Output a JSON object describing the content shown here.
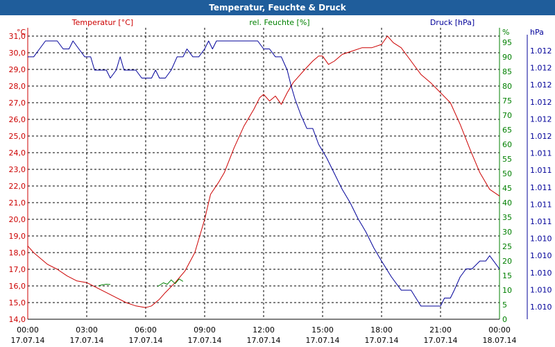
{
  "window": {
    "title": "Temperatur, Feuchte & Druck"
  },
  "colors": {
    "temperature": "#cc0000",
    "humidity": "#008000",
    "pressure": "#000099",
    "grid": "#000000",
    "titlebar": "#1f5d9b"
  },
  "chart_data": {
    "type": "line",
    "title": "Temperatur, Feuchte & Druck",
    "x_range_hours": [
      0,
      24
    ],
    "x_ticks": [
      {
        "h": 0,
        "time": "00:00",
        "date": "17.07.14"
      },
      {
        "h": 3,
        "time": "03:00",
        "date": "17.07.14"
      },
      {
        "h": 6,
        "time": "06:00",
        "date": "17.07.14"
      },
      {
        "h": 9,
        "time": "09:00",
        "date": "17.07.14"
      },
      {
        "h": 12,
        "time": "12:00",
        "date": "17.07.14"
      },
      {
        "h": 15,
        "time": "15:00",
        "date": "17.07.14"
      },
      {
        "h": 18,
        "time": "18:00",
        "date": "17.07.14"
      },
      {
        "h": 21,
        "time": "21:00",
        "date": "17.07.14"
      },
      {
        "h": 24,
        "time": "00:00",
        "date": "18.07.14"
      }
    ],
    "axes": {
      "temperature": {
        "legend": "Temperatur [°C]",
        "unit": "°C",
        "range": [
          14.0,
          31.5
        ],
        "ticks": [
          "31,0",
          "30,0",
          "29,0",
          "28,0",
          "27,0",
          "26,0",
          "25,0",
          "24,0",
          "23,0",
          "22,0",
          "21,0",
          "20,0",
          "19,0",
          "18,0",
          "17,0",
          "16,0",
          "15,0",
          "14,0"
        ]
      },
      "humidity": {
        "legend": "rel. Feuchte [%]",
        "unit": "%",
        "range": [
          0,
          100
        ],
        "ticks": [
          "95",
          "90",
          "85",
          "80",
          "75",
          "70",
          "65",
          "60",
          "55",
          "50",
          "45",
          "40",
          "35",
          "30",
          "25",
          "20",
          "15",
          "10",
          "5",
          "0"
        ]
      },
      "pressure": {
        "legend": "Druck [hPa]",
        "unit": "hPa",
        "ticks": [
          "1.012",
          "1.012",
          "1.012",
          "1.012",
          "1.012",
          "1.012",
          "1.011",
          "1.011",
          "1.011",
          "1.011",
          "1.011",
          "1.010",
          "1.010",
          "1.010",
          "1.010",
          "1.010"
        ]
      }
    },
    "series": [
      {
        "name": "Temperatur",
        "axis": "temperature",
        "points": [
          [
            0.0,
            18.4
          ],
          [
            0.3,
            18.0
          ],
          [
            0.7,
            17.6
          ],
          [
            1.0,
            17.3
          ],
          [
            1.5,
            17.0
          ],
          [
            2.0,
            16.6
          ],
          [
            2.5,
            16.3
          ],
          [
            3.0,
            16.2
          ],
          [
            3.5,
            15.9
          ],
          [
            4.0,
            15.6
          ],
          [
            4.5,
            15.3
          ],
          [
            5.0,
            15.0
          ],
          [
            5.5,
            14.8
          ],
          [
            6.0,
            14.7
          ],
          [
            6.3,
            14.8
          ],
          [
            6.7,
            15.2
          ],
          [
            7.0,
            15.6
          ],
          [
            7.5,
            16.2
          ],
          [
            8.0,
            16.9
          ],
          [
            8.5,
            18.0
          ],
          [
            9.0,
            20.0
          ],
          [
            9.3,
            21.5
          ],
          [
            9.7,
            22.2
          ],
          [
            10.0,
            22.8
          ],
          [
            10.5,
            24.3
          ],
          [
            11.0,
            25.6
          ],
          [
            11.5,
            26.6
          ],
          [
            11.8,
            27.3
          ],
          [
            12.0,
            27.5
          ],
          [
            12.3,
            27.1
          ],
          [
            12.6,
            27.4
          ],
          [
            12.9,
            26.9
          ],
          [
            13.2,
            27.6
          ],
          [
            13.5,
            28.2
          ],
          [
            13.8,
            28.6
          ],
          [
            14.1,
            29.0
          ],
          [
            14.5,
            29.5
          ],
          [
            14.8,
            29.8
          ],
          [
            15.0,
            29.8
          ],
          [
            15.3,
            29.3
          ],
          [
            15.6,
            29.5
          ],
          [
            16.0,
            29.9
          ],
          [
            16.5,
            30.1
          ],
          [
            17.0,
            30.3
          ],
          [
            17.5,
            30.3
          ],
          [
            18.0,
            30.5
          ],
          [
            18.3,
            31.0
          ],
          [
            18.6,
            30.6
          ],
          [
            19.0,
            30.3
          ],
          [
            19.5,
            29.5
          ],
          [
            20.0,
            28.7
          ],
          [
            20.5,
            28.2
          ],
          [
            21.0,
            27.6
          ],
          [
            21.5,
            27.0
          ],
          [
            22.0,
            25.7
          ],
          [
            22.5,
            24.2
          ],
          [
            23.0,
            22.8
          ],
          [
            23.5,
            21.8
          ],
          [
            24.0,
            21.4
          ]
        ]
      },
      {
        "name": "rel. Feuchte",
        "axis": "humidity",
        "points": [
          [
            3.6,
            11.5
          ],
          [
            3.8,
            11.8
          ],
          [
            4.0,
            12.0
          ],
          [
            4.2,
            11.9
          ]
        ]
      },
      {
        "name": "rel. Feuchte",
        "axis": "humidity",
        "points": [
          [
            6.6,
            11.2
          ],
          [
            6.9,
            12.5
          ],
          [
            7.1,
            12.0
          ],
          [
            7.3,
            13.5
          ],
          [
            7.5,
            12.2
          ],
          [
            7.7,
            13.8
          ],
          [
            7.9,
            13.0
          ]
        ]
      },
      {
        "name": "Druck",
        "axis": "pressure",
        "scale": [
          0,
          100
        ],
        "points": [
          [
            0.0,
            94
          ],
          [
            0.3,
            94
          ],
          [
            0.6,
            97
          ],
          [
            0.9,
            100
          ],
          [
            1.2,
            100
          ],
          [
            1.5,
            100
          ],
          [
            1.8,
            97
          ],
          [
            2.1,
            97
          ],
          [
            2.3,
            100
          ],
          [
            2.6,
            97
          ],
          [
            2.9,
            94
          ],
          [
            3.2,
            94
          ],
          [
            3.4,
            89
          ],
          [
            3.7,
            89
          ],
          [
            4.0,
            89
          ],
          [
            4.2,
            86
          ],
          [
            4.5,
            89
          ],
          [
            4.7,
            94
          ],
          [
            4.9,
            89
          ],
          [
            5.2,
            89
          ],
          [
            5.5,
            89
          ],
          [
            5.8,
            86
          ],
          [
            6.0,
            86
          ],
          [
            6.3,
            86
          ],
          [
            6.5,
            89
          ],
          [
            6.7,
            86
          ],
          [
            7.0,
            86
          ],
          [
            7.3,
            89
          ],
          [
            7.6,
            94
          ],
          [
            7.9,
            94
          ],
          [
            8.1,
            97
          ],
          [
            8.4,
            94
          ],
          [
            8.7,
            94
          ],
          [
            9.0,
            97
          ],
          [
            9.2,
            100
          ],
          [
            9.4,
            97
          ],
          [
            9.6,
            100
          ],
          [
            10.0,
            100
          ],
          [
            11.0,
            100
          ],
          [
            11.7,
            100
          ],
          [
            12.0,
            97
          ],
          [
            12.3,
            97
          ],
          [
            12.6,
            94
          ],
          [
            12.9,
            94
          ],
          [
            13.2,
            89
          ],
          [
            13.4,
            83
          ],
          [
            13.6,
            78
          ],
          [
            13.9,
            72
          ],
          [
            14.2,
            67
          ],
          [
            14.5,
            67
          ],
          [
            14.8,
            61
          ],
          [
            15.2,
            56
          ],
          [
            15.6,
            50
          ],
          [
            16.0,
            44
          ],
          [
            16.4,
            39
          ],
          [
            16.8,
            33
          ],
          [
            17.2,
            28
          ],
          [
            17.6,
            22
          ],
          [
            18.0,
            17
          ],
          [
            18.5,
            11
          ],
          [
            19.0,
            6
          ],
          [
            19.5,
            6
          ],
          [
            20.0,
            0
          ],
          [
            20.5,
            0
          ],
          [
            21.0,
            0
          ],
          [
            21.2,
            3
          ],
          [
            21.5,
            3
          ],
          [
            21.7,
            6
          ],
          [
            22.0,
            11
          ],
          [
            22.3,
            14
          ],
          [
            22.6,
            14
          ],
          [
            23.0,
            17
          ],
          [
            23.3,
            17
          ],
          [
            23.5,
            19
          ],
          [
            23.7,
            17
          ],
          [
            24.0,
            14
          ]
        ]
      }
    ]
  }
}
